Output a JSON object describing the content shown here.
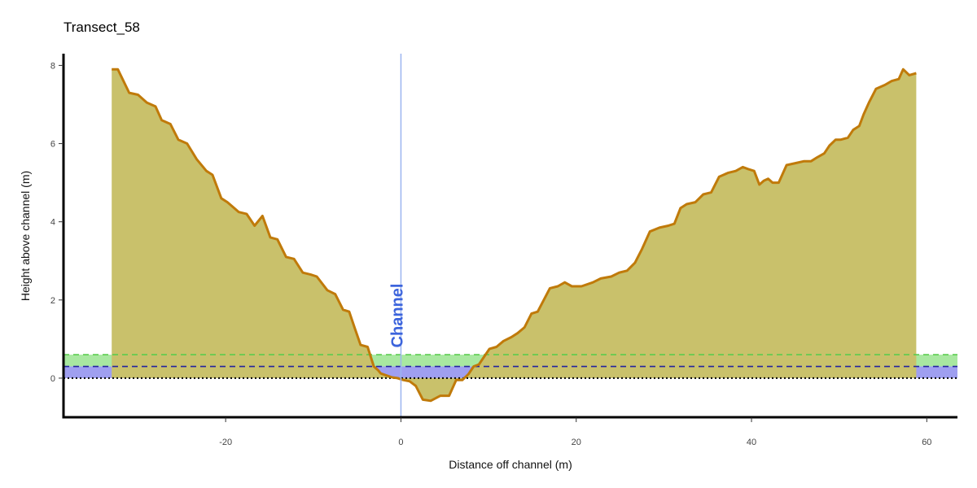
{
  "chart_data": {
    "type": "area",
    "title": "Transect_58",
    "xlabel": "Distance off channel (m)",
    "ylabel": "Height above channel (m)",
    "xlim": [
      -38.5,
      63.5
    ],
    "ylim": [
      -1.0,
      8.3
    ],
    "x_ticks": [
      -20,
      0,
      20,
      40,
      60
    ],
    "y_ticks": [
      0,
      2,
      4,
      6,
      8
    ],
    "grid": false,
    "legend": "none",
    "colors": {
      "terrain_fill": "#c9c16b",
      "terrain_line": "#c07a0a",
      "green_band": "#a8e8a0",
      "green_line": "#5acb4e",
      "blue_band": "#9f9ff0",
      "blue_line": "#2323a0",
      "channel_line": "#9bb4f0",
      "channel_text": "#3c64dc"
    },
    "bands": [
      {
        "ymin": 0.3,
        "ymax": 0.6,
        "line": 0.6
      },
      {
        "ymin": 0.0,
        "ymax": 0.3,
        "line": 0.3
      }
    ],
    "reference_line_y": 0.0,
    "channel": {
      "x": 0,
      "label": "Channel"
    },
    "series": [
      {
        "x": [
          -33,
          -32.3,
          -31,
          -30,
          -29,
          -28,
          -27.3,
          -26.3,
          -25.4,
          -24.4,
          -23.3,
          -22.2,
          -21.5,
          -20.5,
          -19.8,
          -18.5,
          -17.6,
          -16.7,
          -15.8,
          -14.9,
          -14.1,
          -13.1,
          -12.2,
          -11.2,
          -10.3,
          -9.6,
          -8.4,
          -7.5,
          -6.6,
          -5.9,
          -5.3,
          -4.6,
          -3.8,
          -3.1,
          -2.6,
          -2.3,
          -1.8,
          -1.4,
          -1,
          -0.4,
          0.3,
          1,
          1.7,
          2.5,
          3.4,
          4.5,
          5.5,
          6.3,
          7,
          7.7,
          8.3,
          8.9,
          9.5,
          10.1,
          10.9,
          11.7,
          12.6,
          13.3,
          14.1,
          14.9,
          15.6,
          16.3,
          17,
          17.9,
          18.7,
          19.5,
          20.6,
          21.9,
          22.8,
          24,
          24.9,
          25.8,
          26.7,
          27.5,
          28.4,
          29.5,
          30.5,
          31.2,
          31.9,
          32.6,
          33.6,
          34.5,
          35.4,
          36.3,
          37.3,
          38.2,
          39,
          39.6,
          40.3,
          40.9,
          41.4,
          41.9,
          42.4,
          43.1,
          44,
          45,
          46,
          46.8,
          47.5,
          48.3,
          48.9,
          49.6,
          50.2,
          51,
          51.6,
          52.3,
          52.8,
          53.4,
          54.2,
          55.2,
          56,
          56.8,
          57.3,
          58,
          58.8
        ],
        "y": [
          7.9,
          7.9,
          7.3,
          7.25,
          7.05,
          6.95,
          6.6,
          6.5,
          6.1,
          6.0,
          5.6,
          5.3,
          5.2,
          4.6,
          4.5,
          4.25,
          4.2,
          3.9,
          4.15,
          3.6,
          3.55,
          3.1,
          3.05,
          2.7,
          2.65,
          2.6,
          2.25,
          2.15,
          1.75,
          1.7,
          1.3,
          0.85,
          0.8,
          0.3,
          0.2,
          0.12,
          0.08,
          0.05,
          0.02,
          0.0,
          -0.05,
          -0.08,
          -0.2,
          -0.55,
          -0.58,
          -0.45,
          -0.45,
          -0.05,
          -0.05,
          0.1,
          0.3,
          0.35,
          0.55,
          0.75,
          0.8,
          0.95,
          1.05,
          1.15,
          1.3,
          1.65,
          1.7,
          2.0,
          2.3,
          2.35,
          2.45,
          2.35,
          2.35,
          2.45,
          2.55,
          2.6,
          2.7,
          2.75,
          2.95,
          3.3,
          3.75,
          3.85,
          3.9,
          3.95,
          4.35,
          4.45,
          4.5,
          4.7,
          4.75,
          5.15,
          5.25,
          5.3,
          5.4,
          5.35,
          5.3,
          4.95,
          5.05,
          5.1,
          5.0,
          5.0,
          5.45,
          5.5,
          5.55,
          5.55,
          5.65,
          5.75,
          5.95,
          6.1,
          6.1,
          6.15,
          6.35,
          6.45,
          6.75,
          7.05,
          7.4,
          7.5,
          7.6,
          7.65,
          7.9,
          7.75,
          7.8
        ]
      }
    ]
  }
}
